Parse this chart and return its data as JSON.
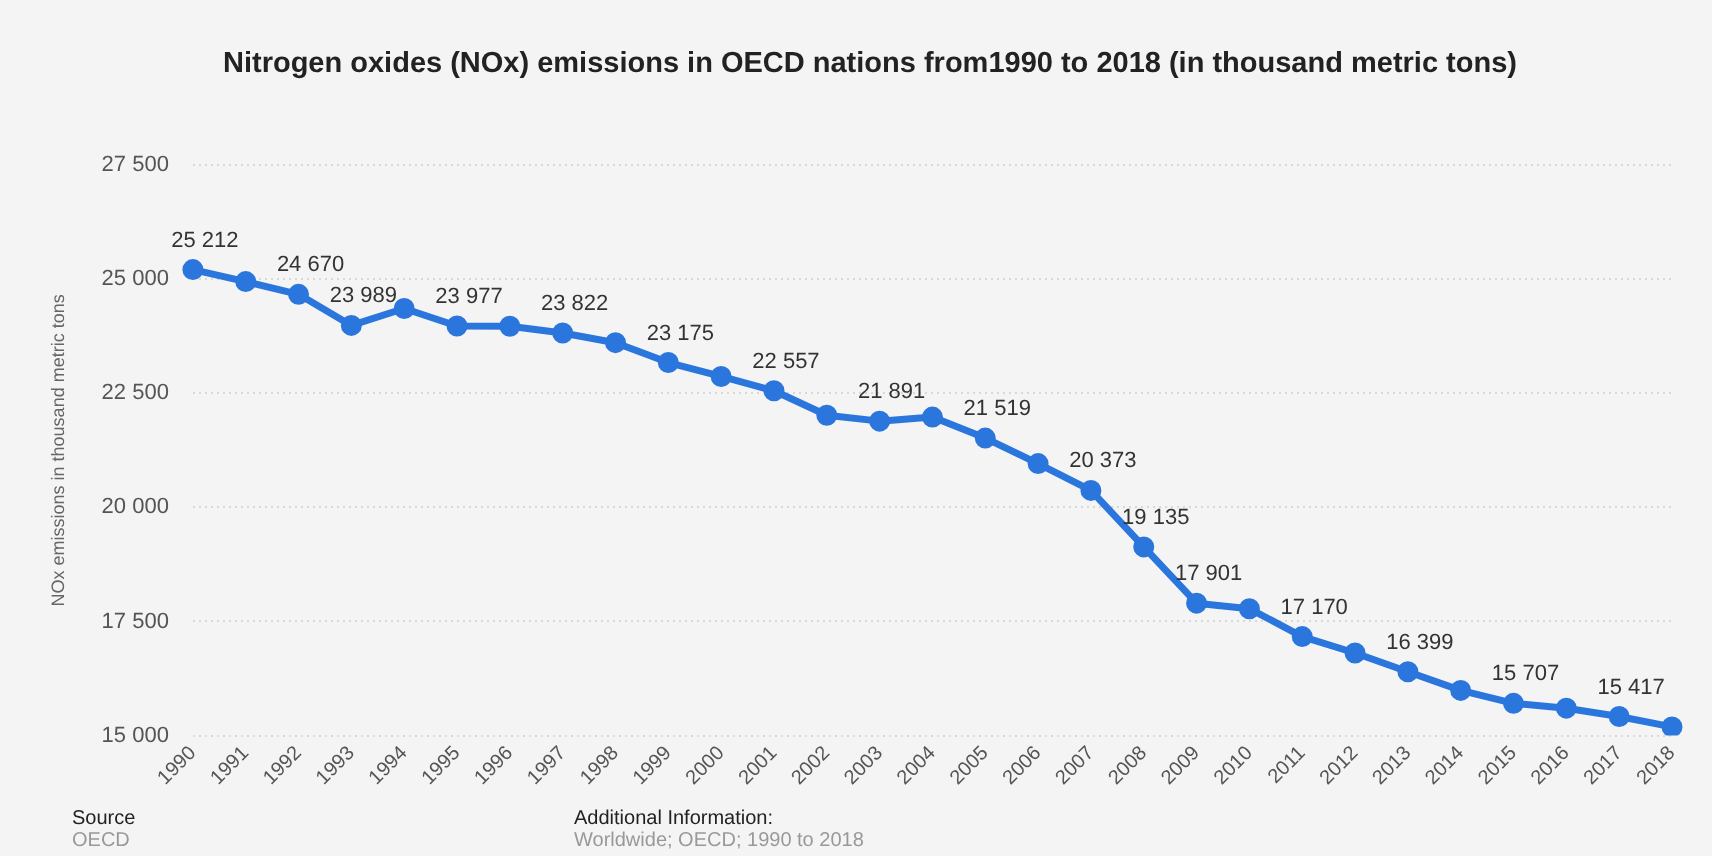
{
  "chart_data": {
    "type": "line",
    "title": "Nitrogen oxides (NOx) emissions in OECD nations from1990 to 2018 (in thousand metric tons)",
    "ylabel": "NOx emissions in thousand metric tons",
    "categories": [
      "1990",
      "1991",
      "1992",
      "1993",
      "1994",
      "1995",
      "1996",
      "1997",
      "1998",
      "1999",
      "2000",
      "2001",
      "2002",
      "2003",
      "2004",
      "2005",
      "2006",
      "2007",
      "2008",
      "2009",
      "2010",
      "2011",
      "2012",
      "2013",
      "2014",
      "2015",
      "2016",
      "2017",
      "2018"
    ],
    "series": [
      {
        "color": "#2a76dd",
        "values": [
          25212,
          24950,
          24670,
          23989,
          24360,
          23977,
          23970,
          23822,
          23610,
          23175,
          22870,
          22557,
          22020,
          21891,
          21980,
          21519,
          20960,
          20373,
          19135,
          17901,
          17780,
          17170,
          16810,
          16399,
          15990,
          15707,
          15600,
          15417,
          15190
        ],
        "value_labels": [
          "25 212",
          null,
          "24 670",
          "23 989",
          null,
          "23 977",
          null,
          "23 822",
          null,
          "23 175",
          null,
          "22 557",
          null,
          "21 891",
          null,
          "21 519",
          null,
          "20 373",
          "19 135",
          "17 901",
          null,
          "17 170",
          null,
          "16 399",
          null,
          "15 707",
          null,
          "15 417",
          null
        ]
      }
    ],
    "ylim": [
      15000,
      27500
    ],
    "yticks": [
      {
        "value": 15000,
        "label": "15 000"
      },
      {
        "value": 17500,
        "label": "17 500"
      },
      {
        "value": 20000,
        "label": "20 000"
      },
      {
        "value": 22500,
        "label": "22 500"
      },
      {
        "value": 25000,
        "label": "25 000"
      },
      {
        "value": 27500,
        "label": "27 500"
      }
    ],
    "grid": "y",
    "legend": false,
    "marker": "circle",
    "line_style": "solid",
    "annotations": [
      "Source",
      "OECD",
      "Additional Information:",
      "Worldwide; OECD; 1990 to 2018"
    ]
  }
}
